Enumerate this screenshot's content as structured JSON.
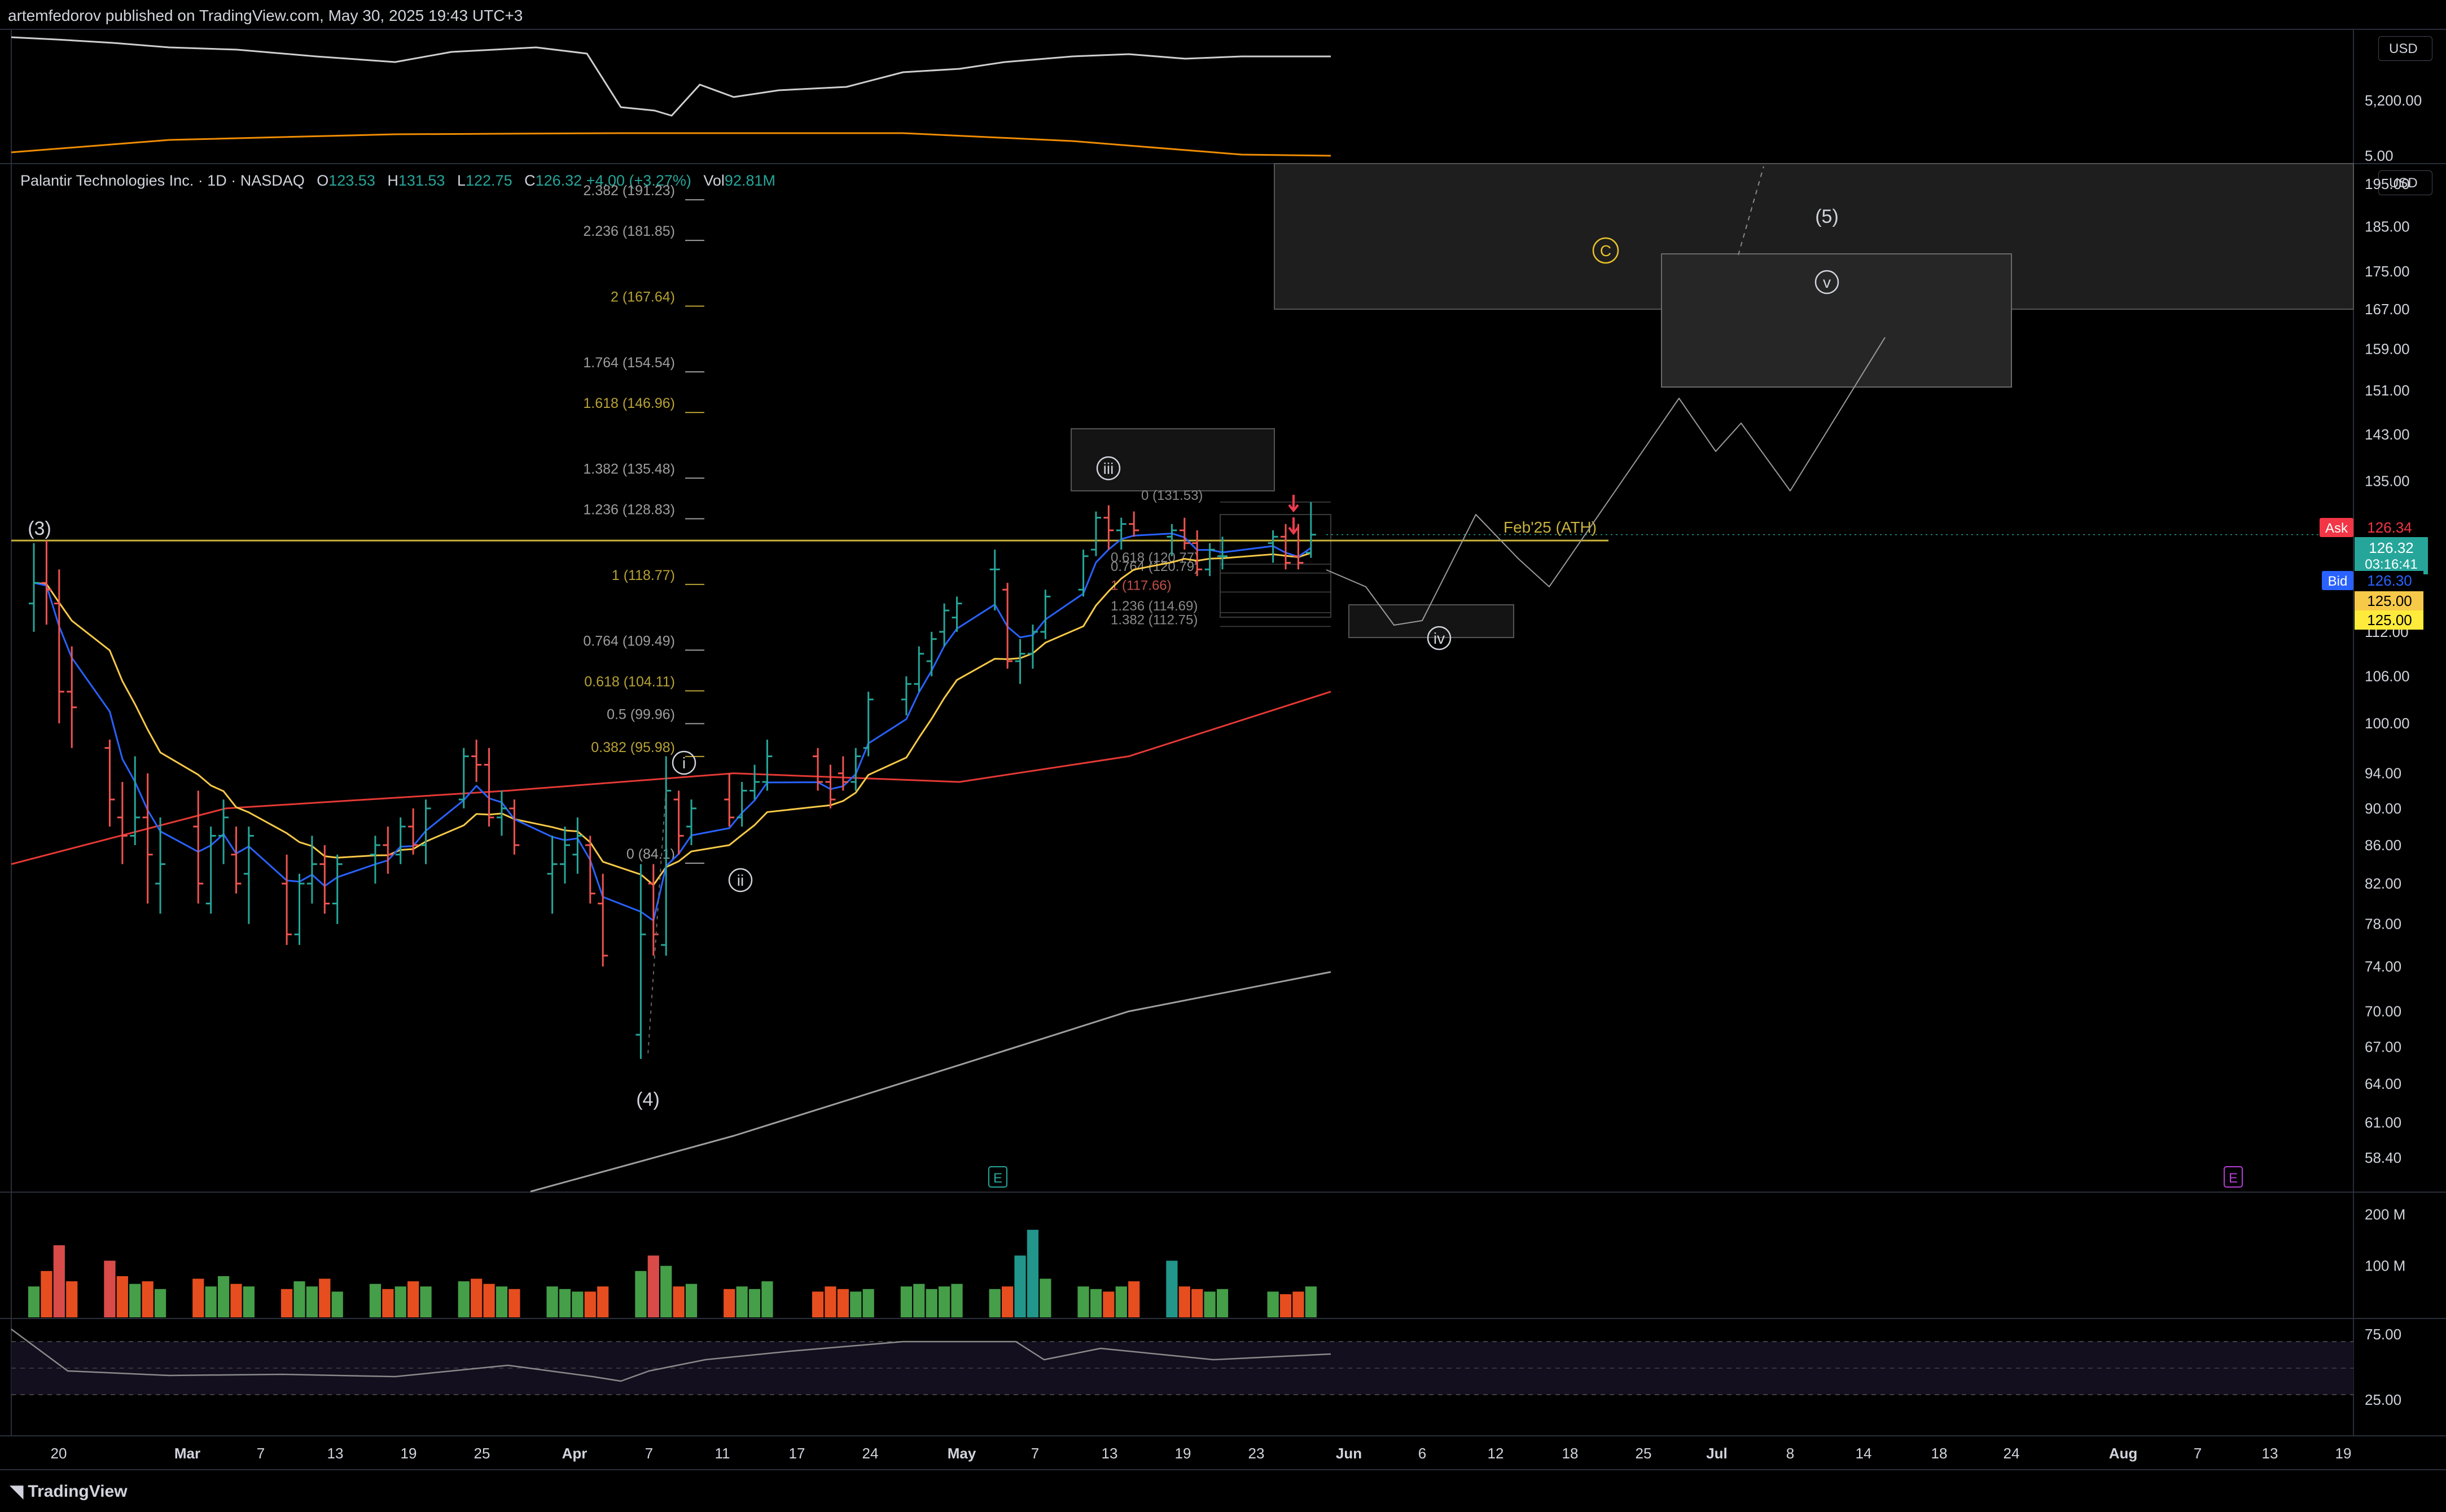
{
  "header": {
    "published_text": "artemfedorov published on TradingView.com, May 30, 2025 19:43 UTC+3",
    "brand": "TradingView"
  },
  "legend": {
    "symbol": "Palantir Technologies Inc. · 1D · NASDAQ",
    "open_key": "O",
    "open": "123.53",
    "high_key": "H",
    "high": "131.53",
    "low_key": "L",
    "low": "122.75",
    "close_key": "C",
    "close": "126.32",
    "change": "+4.00 (+3.27%)",
    "vol_key": "Vol",
    "vol": "92.81M"
  },
  "currency_buttons": [
    "USD",
    "USD"
  ],
  "colors": {
    "background": "#000000",
    "up": "#26a69a",
    "down": "#ef5350",
    "ema_fast": "#2962ff",
    "ema_mid": "#f7c948",
    "ema_slow": "#e53935",
    "sma_long": "#9e9e9e",
    "ath_line": "#c8b43c",
    "fib_gold": "#b8a236",
    "fib_gray": "#9e9e9e",
    "volume_up": "#4caf50",
    "volume_down": "#ff5722"
  },
  "chart_data": {
    "type": "candlestick",
    "title": "Palantir Technologies Inc. · 1D · NASDAQ",
    "y_scale": "log",
    "ylim": [
      56,
      200
    ],
    "x_tick_labels": [
      "20",
      "Mar",
      "7",
      "13",
      "19",
      "25",
      "Apr",
      "7",
      "11",
      "17",
      "24",
      "May",
      "7",
      "13",
      "19",
      "23",
      "Jun",
      "6",
      "12",
      "18",
      "25",
      "Jul",
      "8",
      "14",
      "18",
      "24",
      "Aug",
      "7",
      "13",
      "19"
    ],
    "y_tick_labels": [
      "195.00",
      "185.00",
      "175.00",
      "167.00",
      "159.00",
      "151.00",
      "143.00",
      "135.00",
      "126.00",
      "119.00",
      "112.00",
      "106.00",
      "100.00",
      "94.00",
      "90.00",
      "86.00",
      "82.00",
      "78.00",
      "74.00",
      "70.00",
      "67.00",
      "64.00",
      "61.00",
      "58.40"
    ],
    "price_labels": {
      "ask_key": "Ask",
      "ask": "126.34",
      "last": "126.32",
      "countdown": "03:16:41",
      "bid_key": "Bid",
      "bid": "126.30",
      "ema1": "125.00",
      "ema2": "125.00"
    },
    "ohlc_approx": [
      {
        "date": "2025-02-18",
        "o": 116,
        "h": 125,
        "l": 112,
        "c": 119
      },
      {
        "date": "2025-02-19",
        "o": 119,
        "h": 125.4,
        "l": 113,
        "c": 118
      },
      {
        "date": "2025-02-20",
        "o": 116,
        "h": 121,
        "l": 100,
        "c": 104
      },
      {
        "date": "2025-02-21",
        "o": 104,
        "h": 110,
        "l": 97,
        "c": 102
      },
      {
        "date": "2025-02-24",
        "o": 97,
        "h": 98,
        "l": 88,
        "c": 91
      },
      {
        "date": "2025-02-25",
        "o": 89,
        "h": 93,
        "l": 84,
        "c": 87
      },
      {
        "date": "2025-02-26",
        "o": 87,
        "h": 96,
        "l": 86,
        "c": 89
      },
      {
        "date": "2025-02-27",
        "o": 89,
        "h": 94,
        "l": 80,
        "c": 85
      },
      {
        "date": "2025-02-28",
        "o": 82,
        "h": 89,
        "l": 79,
        "c": 84
      },
      {
        "date": "2025-03-03",
        "o": 88,
        "h": 92,
        "l": 80,
        "c": 82
      },
      {
        "date": "2025-03-04",
        "o": 80,
        "h": 88,
        "l": 79,
        "c": 87
      },
      {
        "date": "2025-03-05",
        "o": 87,
        "h": 91,
        "l": 84,
        "c": 89
      },
      {
        "date": "2025-03-06",
        "o": 85,
        "h": 88,
        "l": 81,
        "c": 82
      },
      {
        "date": "2025-03-07",
        "o": 83,
        "h": 88,
        "l": 78,
        "c": 87
      },
      {
        "date": "2025-03-10",
        "o": 82,
        "h": 85,
        "l": 76,
        "c": 77
      },
      {
        "date": "2025-03-11",
        "o": 77,
        "h": 83,
        "l": 76,
        "c": 82
      },
      {
        "date": "2025-03-12",
        "o": 82,
        "h": 87,
        "l": 80,
        "c": 84
      },
      {
        "date": "2025-03-13",
        "o": 84,
        "h": 86,
        "l": 79,
        "c": 80
      },
      {
        "date": "2025-03-14",
        "o": 80,
        "h": 85,
        "l": 78,
        "c": 84
      },
      {
        "date": "2025-03-17",
        "o": 85,
        "h": 87,
        "l": 82,
        "c": 86
      },
      {
        "date": "2025-03-18",
        "o": 86,
        "h": 88,
        "l": 83,
        "c": 85
      },
      {
        "date": "2025-03-19",
        "o": 85,
        "h": 89,
        "l": 84,
        "c": 88
      },
      {
        "date": "2025-03-20",
        "o": 88,
        "h": 90,
        "l": 85,
        "c": 86
      },
      {
        "date": "2025-03-21",
        "o": 86,
        "h": 91,
        "l": 84,
        "c": 90
      },
      {
        "date": "2025-03-24",
        "o": 91,
        "h": 97,
        "l": 90,
        "c": 96
      },
      {
        "date": "2025-03-25",
        "o": 96,
        "h": 98,
        "l": 93,
        "c": 95
      },
      {
        "date": "2025-03-26",
        "o": 95,
        "h": 97,
        "l": 88,
        "c": 89
      },
      {
        "date": "2025-03-27",
        "o": 89,
        "h": 92,
        "l": 87,
        "c": 90
      },
      {
        "date": "2025-03-28",
        "o": 90,
        "h": 91,
        "l": 85,
        "c": 86
      },
      {
        "date": "2025-03-31",
        "o": 83,
        "h": 87,
        "l": 79,
        "c": 84
      },
      {
        "date": "2025-04-01",
        "o": 84,
        "h": 88,
        "l": 82,
        "c": 86
      },
      {
        "date": "2025-04-02",
        "o": 85,
        "h": 89,
        "l": 83,
        "c": 87
      },
      {
        "date": "2025-04-03",
        "o": 86,
        "h": 87,
        "l": 80,
        "c": 81
      },
      {
        "date": "2025-04-04",
        "o": 80,
        "h": 83,
        "l": 74,
        "c": 75
      },
      {
        "date": "2025-04-07",
        "o": 68,
        "h": 84,
        "l": 66,
        "c": 77
      },
      {
        "date": "2025-04-08",
        "o": 82,
        "h": 84,
        "l": 75,
        "c": 77
      },
      {
        "date": "2025-04-09",
        "o": 76,
        "h": 96,
        "l": 75,
        "c": 92
      },
      {
        "date": "2025-04-10",
        "o": 91,
        "h": 92,
        "l": 85,
        "c": 87
      },
      {
        "date": "2025-04-11",
        "o": 88,
        "h": 91,
        "l": 86,
        "c": 90
      },
      {
        "date": "2025-04-14",
        "o": 91,
        "h": 94,
        "l": 88,
        "c": 89
      },
      {
        "date": "2025-04-15",
        "o": 89,
        "h": 93,
        "l": 88,
        "c": 92
      },
      {
        "date": "2025-04-16",
        "o": 92,
        "h": 95,
        "l": 91,
        "c": 93
      },
      {
        "date": "2025-04-17",
        "o": 93,
        "h": 98,
        "l": 92,
        "c": 96
      },
      {
        "date": "2025-04-21",
        "o": 96,
        "h": 97,
        "l": 92,
        "c": 93
      },
      {
        "date": "2025-04-22",
        "o": 93,
        "h": 95,
        "l": 90,
        "c": 91
      },
      {
        "date": "2025-04-23",
        "o": 94,
        "h": 96,
        "l": 92,
        "c": 93
      },
      {
        "date": "2025-04-24",
        "o": 93,
        "h": 97,
        "l": 92,
        "c": 96
      },
      {
        "date": "2025-04-25",
        "o": 97,
        "h": 104,
        "l": 96,
        "c": 103
      },
      {
        "date": "2025-04-28",
        "o": 103,
        "h": 106,
        "l": 101,
        "c": 105
      },
      {
        "date": "2025-04-29",
        "o": 105,
        "h": 110,
        "l": 104,
        "c": 109
      },
      {
        "date": "2025-04-30",
        "o": 108,
        "h": 112,
        "l": 106,
        "c": 111
      },
      {
        "date": "2025-05-01",
        "o": 112,
        "h": 116,
        "l": 110,
        "c": 115
      },
      {
        "date": "2025-05-02",
        "o": 114,
        "h": 117,
        "l": 112,
        "c": 116
      },
      {
        "date": "2025-05-05",
        "o": 121,
        "h": 124,
        "l": 115,
        "c": 121
      },
      {
        "date": "2025-05-06",
        "o": 118,
        "h": 119,
        "l": 107,
        "c": 108
      },
      {
        "date": "2025-05-07",
        "o": 108,
        "h": 111,
        "l": 105,
        "c": 109
      },
      {
        "date": "2025-05-08",
        "o": 109,
        "h": 113,
        "l": 107,
        "c": 112
      },
      {
        "date": "2025-05-09",
        "o": 112,
        "h": 118,
        "l": 111,
        "c": 117
      },
      {
        "date": "2025-05-12",
        "o": 118,
        "h": 124,
        "l": 117,
        "c": 123
      },
      {
        "date": "2025-05-13",
        "o": 124,
        "h": 130,
        "l": 123,
        "c": 129
      },
      {
        "date": "2025-05-14",
        "o": 129,
        "h": 131,
        "l": 124,
        "c": 127
      },
      {
        "date": "2025-05-15",
        "o": 127,
        "h": 129,
        "l": 124,
        "c": 128
      },
      {
        "date": "2025-05-16",
        "o": 128,
        "h": 130,
        "l": 126,
        "c": 127
      },
      {
        "date": "2025-05-19",
        "o": 126,
        "h": 128,
        "l": 123,
        "c": 127
      },
      {
        "date": "2025-05-20",
        "o": 127,
        "h": 129,
        "l": 124,
        "c": 125
      },
      {
        "date": "2025-05-21",
        "o": 125,
        "h": 127,
        "l": 120,
        "c": 121
      },
      {
        "date": "2025-05-22",
        "o": 121,
        "h": 125,
        "l": 120,
        "c": 124
      },
      {
        "date": "2025-05-23",
        "o": 123,
        "h": 126,
        "l": 121,
        "c": 123
      },
      {
        "date": "2025-05-27",
        "o": 125,
        "h": 127,
        "l": 122,
        "c": 126
      },
      {
        "date": "2025-05-28",
        "o": 126,
        "h": 128,
        "l": 121,
        "c": 122
      },
      {
        "date": "2025-05-29",
        "o": 123,
        "h": 128,
        "l": 121,
        "c": 122
      },
      {
        "date": "2025-05-30",
        "o": 123.53,
        "h": 131.53,
        "l": 122.75,
        "c": 126.32
      }
    ],
    "ath_line": {
      "label": "Feb'25 (ATH)",
      "value": 125.4
    },
    "fib_extensions_left": [
      {
        "label": "2.382 (191.23)",
        "value": 191.23
      },
      {
        "label": "2.236 (181.85)",
        "value": 181.85
      },
      {
        "label": "2 (167.64)",
        "value": 167.64
      },
      {
        "label": "1.764 (154.54)",
        "value": 154.54
      },
      {
        "label": "1.618 (146.96)",
        "value": 146.96
      },
      {
        "label": "1.382 (135.48)",
        "value": 135.48
      },
      {
        "label": "1.236 (128.83)",
        "value": 128.83
      },
      {
        "label": "1 (118.77)",
        "value": 118.77
      },
      {
        "label": "0.764 (109.49)",
        "value": 109.49
      },
      {
        "label": "0.618 (104.11)",
        "value": 104.11
      },
      {
        "label": "0.5 (99.96)",
        "value": 99.96
      },
      {
        "label": "0.382 (95.98)",
        "value": 95.98
      },
      {
        "label": "0 (84.1)",
        "value": 84.1
      }
    ],
    "fib_retracement_right": [
      {
        "label": "0 (131.53)",
        "value": 131.53
      },
      {
        "label": "0.618 (120.77)",
        "value": 120.77
      },
      {
        "label": "0.764 (120.79)",
        "value": 120.79
      },
      {
        "label": "1 (117.66)",
        "value": 117.66
      },
      {
        "label": "1.236 (114.69)",
        "value": 114.69
      },
      {
        "label": "1.382 (112.75)",
        "value": 112.75
      }
    ],
    "wave_labels": [
      "(3)",
      "(4)",
      "(5)",
      "i",
      "ii",
      "iii",
      "iv",
      "v",
      "C"
    ],
    "volume_tick_labels": [
      "200 M",
      "100 M"
    ],
    "volume_values_m": [
      60,
      90,
      140,
      70,
      110,
      80,
      65,
      70,
      55,
      75,
      60,
      80,
      65,
      60,
      55,
      70,
      60,
      75,
      50,
      65,
      55,
      60,
      70,
      60,
      70,
      75,
      65,
      60,
      55,
      60,
      55,
      50,
      50,
      60,
      90,
      120,
      100,
      60,
      65,
      55,
      60,
      55,
      70,
      50,
      60,
      55,
      50,
      55,
      60,
      65,
      55,
      60,
      65,
      55,
      60,
      120,
      170,
      75,
      60,
      55,
      50,
      60,
      70,
      110,
      60,
      55,
      50,
      55,
      50,
      45,
      50,
      60
    ],
    "rsi_tick_labels": [
      "75.00",
      "25.00"
    ],
    "top_panel_tick_labels": [
      "5,200.00",
      "5.00"
    ],
    "earnings_markers": [
      "E",
      "E"
    ]
  }
}
